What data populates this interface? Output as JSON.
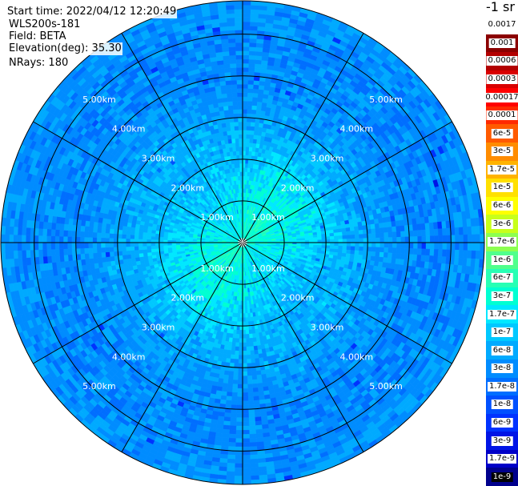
{
  "header": {
    "start_time": "Start time: 2022/04/12 12:20:49",
    "instrument": "WLS200s-181",
    "field": "Field: BETA",
    "elevation": "Elevation(deg): 35.30",
    "nrays": "NRays: 180"
  },
  "colorbar": {
    "title": "-1 sr",
    "labels": [
      "0.0017",
      "0.001",
      "0.0006",
      "0.0003",
      "0.00017",
      "0.0001",
      "6e-5",
      "3e-5",
      "1.7e-5",
      "1e-5",
      "6e-6",
      "3e-6",
      "1.7e-6",
      "1e-6",
      "6e-7",
      "3e-7",
      "1.7e-7",
      "1e-7",
      "6e-8",
      "3e-8",
      "1.7e-8",
      "1e-8",
      "6e-9",
      "3e-9",
      "1.7e-9",
      "1e-9"
    ],
    "colors": [
      "#ffffff",
      "#8b0000",
      "#b30000",
      "#d90000",
      "#ff0000",
      "#ff2a00",
      "#ff5a00",
      "#ff8c00",
      "#ffb300",
      "#ffe000",
      "#ffff00",
      "#c8ff1a",
      "#8cff50",
      "#50ff8c",
      "#28ffb4",
      "#00ffd2",
      "#00e8ff",
      "#00c8ff",
      "#00aaff",
      "#008cff",
      "#006eff",
      "#0050ff",
      "#0032ff",
      "#0014e6",
      "#0000c8",
      "#00008c"
    ]
  },
  "chart_data": {
    "type": "heatmap",
    "subtype": "polar-ppi",
    "field": "BETA",
    "units": "-1 sr",
    "elevation_deg": 35.3,
    "n_rays": 180,
    "range_max_km": 5.8,
    "range_ring_km": [
      1,
      2,
      3,
      4,
      5
    ],
    "ring_labels": [
      "1.00km",
      "2.00km",
      "3.00km",
      "4.00km",
      "5.00km"
    ],
    "azimuth_lines_deg": [
      0,
      30,
      60,
      90,
      120,
      150,
      180,
      210,
      240,
      270,
      300,
      330
    ],
    "ring_label_azimuths_deg": [
      315,
      45,
      225,
      135
    ],
    "value_profile": [
      {
        "range_km": 0.2,
        "beta": 3e-07
      },
      {
        "range_km": 1.0,
        "beta": 2e-07
      },
      {
        "range_km": 2.0,
        "beta": 1e-07
      },
      {
        "range_km": 3.0,
        "beta": 5e-08
      },
      {
        "range_km": 4.0,
        "beta": 3e-08
      },
      {
        "range_km": 5.0,
        "beta": 3e-08
      },
      {
        "range_km": 5.8,
        "beta": 4e-08
      }
    ]
  }
}
